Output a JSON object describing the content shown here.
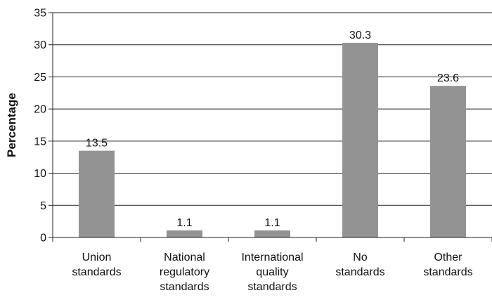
{
  "chart_data": {
    "type": "bar",
    "categories": [
      "Union standards",
      "National regulatory standards",
      "International quality standards",
      "No standards",
      "Other standards"
    ],
    "values": [
      13.5,
      1.1,
      1.1,
      30.3,
      23.6
    ],
    "data_labels": [
      "13.5",
      "1.1",
      "1.1",
      "30.3",
      "23.6"
    ],
    "ylabel": "Percentage",
    "ylim": [
      0,
      35
    ],
    "yticks": [
      0,
      5,
      10,
      15,
      20,
      25,
      30,
      35
    ],
    "grid": true,
    "bar_color": "#939393"
  }
}
